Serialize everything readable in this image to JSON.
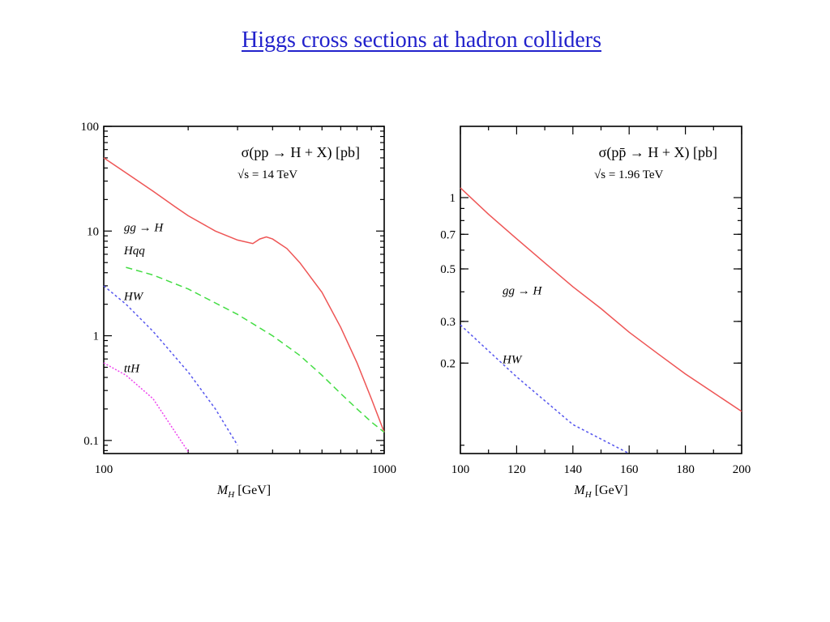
{
  "page": {
    "title": "Higgs cross sections at hadron colliders"
  },
  "chart_data": [
    {
      "type": "line",
      "x_scale": "log",
      "y_scale": "log",
      "xlim": [
        100,
        1000
      ],
      "ylim": [
        0.075,
        100
      ],
      "x_ticks": [
        100,
        1000
      ],
      "x_tick_labels": [
        "100",
        "1000"
      ],
      "y_ticks": [
        0.1,
        1,
        10,
        100
      ],
      "y_tick_labels": [
        "0.1",
        "1",
        "10",
        "100"
      ],
      "xlabel": "M_H [GeV]",
      "xlabel_main": "M",
      "xlabel_sub": "H",
      "xlabel_unit": "[GeV]",
      "annotation": "σ(pp → H + X) [pb]",
      "annotation2": "√s = 14 TeV",
      "series": [
        {
          "name": "gg → H",
          "color": "#ee5555",
          "dash": "solid",
          "x": [
            100,
            120,
            150,
            180,
            200,
            250,
            300,
            340,
            360,
            380,
            400,
            450,
            500,
            600,
            700,
            800,
            900,
            1000
          ],
          "y": [
            50,
            36,
            24,
            17,
            14,
            10,
            8.2,
            7.6,
            8.4,
            8.8,
            8.4,
            6.8,
            5.0,
            2.6,
            1.2,
            0.55,
            0.25,
            0.12
          ]
        },
        {
          "name": "Hqq",
          "color": "#44dd44",
          "dash": "8,5",
          "x": [
            120,
            150,
            200,
            300,
            400,
            500,
            600,
            700,
            800,
            900,
            1000
          ],
          "y": [
            4.5,
            3.8,
            2.8,
            1.6,
            1.0,
            0.65,
            0.42,
            0.28,
            0.2,
            0.15,
            0.12
          ]
        },
        {
          "name": "HW",
          "color": "#5555ee",
          "dash": "3,3",
          "x": [
            100,
            120,
            150,
            200,
            250,
            300
          ],
          "y": [
            3.0,
            2.0,
            1.1,
            0.45,
            0.2,
            0.09
          ]
        },
        {
          "name": "ttH",
          "color": "#ee44ee",
          "dash": "2,2",
          "x": [
            100,
            120,
            150,
            200
          ],
          "y": [
            0.55,
            0.42,
            0.25,
            0.078
          ]
        }
      ],
      "series_labels": [
        {
          "text": "gg → H",
          "x": 118,
          "y": 10
        },
        {
          "text": "Hqq",
          "x": 118,
          "y": 6.0
        },
        {
          "text": "HW",
          "x": 118,
          "y": 2.2
        },
        {
          "text": "ttH",
          "x": 118,
          "y": 0.45
        }
      ]
    },
    {
      "type": "line",
      "x_scale": "linear",
      "y_scale": "log",
      "xlim": [
        100,
        200
      ],
      "ylim": [
        0.083,
        2
      ],
      "x_ticks": [
        100,
        120,
        140,
        160,
        180,
        200
      ],
      "x_tick_labels": [
        "100",
        "120",
        "140",
        "160",
        "180",
        "200"
      ],
      "y_ticks": [
        0.2,
        0.3,
        0.5,
        0.7,
        1
      ],
      "y_tick_labels": [
        "0.2",
        "0.3",
        "0.5",
        "0.7",
        "1"
      ],
      "xlabel": "M_H [GeV]",
      "xlabel_main": "M",
      "xlabel_sub": "H",
      "xlabel_unit": "[GeV]",
      "annotation": "σ(pp̄ → H + X) [pb]",
      "annotation2": "√s = 1.96 TeV",
      "series": [
        {
          "name": "gg → H",
          "color": "#ee5555",
          "dash": "solid",
          "x": [
            100,
            110,
            120,
            130,
            140,
            150,
            160,
            170,
            180,
            190,
            200
          ],
          "y": [
            1.1,
            0.85,
            0.67,
            0.53,
            0.42,
            0.34,
            0.27,
            0.22,
            0.18,
            0.15,
            0.125
          ]
        },
        {
          "name": "HW",
          "color": "#5555ee",
          "dash": "3,3",
          "x": [
            100,
            120,
            140,
            160
          ],
          "y": [
            0.29,
            0.175,
            0.11,
            0.083
          ]
        }
      ],
      "series_labels": [
        {
          "text": "gg → H",
          "x": 115,
          "y": 0.39
        },
        {
          "text": "HW",
          "x": 115,
          "y": 0.2
        }
      ]
    }
  ]
}
